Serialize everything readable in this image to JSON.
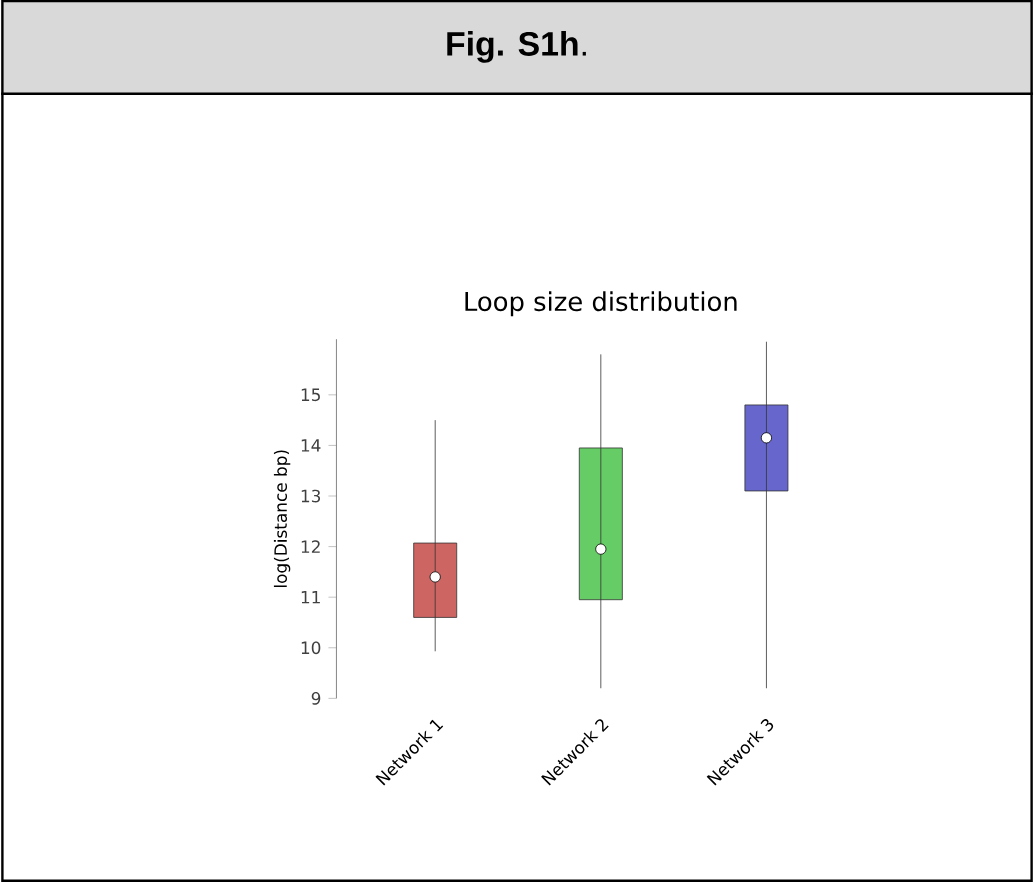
{
  "chart_data": {
    "type": "box",
    "title": "**Fig. S1h**.",
    "subtitle": "Loop size distribution",
    "ylabel": "log(Distance bp)",
    "categories": [
      "Network 1",
      "Network 2",
      "Network 3"
    ],
    "colors": [
      "#cd6562",
      "#66cc66",
      "#6666cc"
    ],
    "boxes": [
      {
        "low": 9.93,
        "q1": 10.6,
        "median": 11.4,
        "q3": 12.07,
        "high": 14.5
      },
      {
        "low": 9.2,
        "q1": 10.95,
        "median": 11.95,
        "q3": 13.95,
        "high": 15.8
      },
      {
        "low": 9.2,
        "q1": 13.1,
        "median": 14.15,
        "q3": 14.8,
        "high": 16.05
      }
    ],
    "ylim": [
      9,
      16.1
    ],
    "yticks": [
      9,
      10,
      11,
      12,
      13,
      14,
      15
    ],
    "grid": false
  }
}
